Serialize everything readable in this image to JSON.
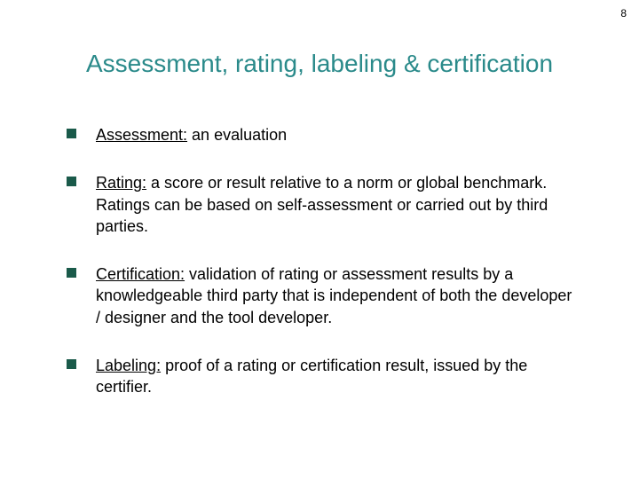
{
  "page_number": "8",
  "title": "Assessment, rating, labeling & certification",
  "title_color": "#2a8a8a",
  "bullet_fill": "#1a5a4a",
  "bullets": [
    {
      "term": "Assessment:",
      "rest": " an evaluation"
    },
    {
      "term": "Rating:",
      "rest": " a score or result relative to a norm or global benchmark.  Ratings can be based on self-assessment or carried out by third parties."
    },
    {
      "term": "Certification:",
      "rest": " validation of rating or assessment results by a knowledgeable third party that is independent of both the developer / designer and the tool developer."
    },
    {
      "term": "Labeling:",
      "rest": "  proof of a rating or certification result, issued by the certifier."
    }
  ]
}
